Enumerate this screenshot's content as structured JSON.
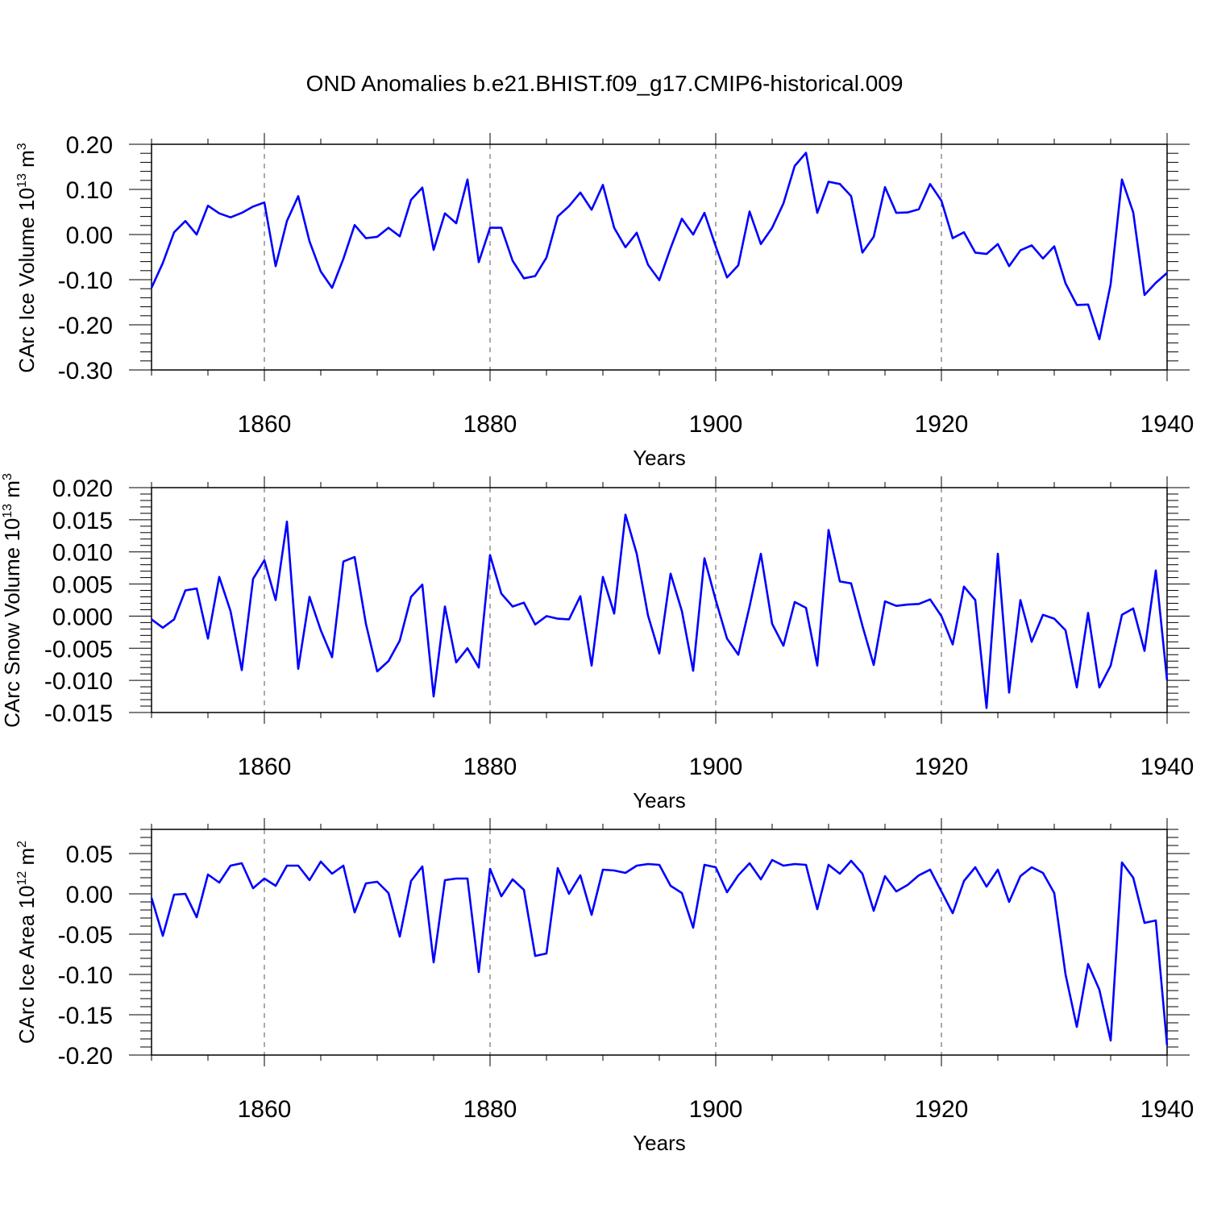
{
  "title": "OND Anomalies b.e21.BHIST.f09_g17.CMIP6-historical.009",
  "colors": {
    "line": "#0000ff",
    "axis": "#000000",
    "grid": "#555555"
  },
  "chart_data": [
    {
      "type": "line",
      "name": "ice-volume",
      "ylabel": {
        "text": "CArc Ice Volume 10",
        "sup": "13",
        "unit": " m",
        "unit_sup": "3"
      },
      "xlabel": "Years",
      "xlim": [
        1850,
        1940
      ],
      "ylim": [
        -0.3,
        0.2
      ],
      "yticks": [
        0.2,
        0.1,
        0.0,
        -0.1,
        -0.2,
        -0.3
      ],
      "ytick_labels": [
        "0.20",
        "0.10",
        "0.00",
        "-0.10",
        "-0.20",
        "-0.30"
      ],
      "xticks": [
        1860,
        1880,
        1900,
        1920,
        1940
      ],
      "xtick_labels": [
        "1860",
        "1880",
        "1900",
        "1920",
        "1940"
      ],
      "x_start": 1850,
      "values": [
        -0.118,
        -0.063,
        0.005,
        0.03,
        0.0,
        0.064,
        0.047,
        0.038,
        0.048,
        0.062,
        0.071,
        -0.07,
        0.03,
        0.085,
        -0.015,
        -0.082,
        -0.118,
        -0.054,
        0.021,
        -0.008,
        -0.005,
        0.015,
        -0.004,
        0.077,
        0.104,
        -0.034,
        0.047,
        0.025,
        0.122,
        -0.061,
        0.015,
        0.015,
        -0.058,
        -0.097,
        -0.092,
        -0.051,
        0.04,
        0.063,
        0.093,
        0.055,
        0.11,
        0.015,
        -0.028,
        0.004,
        -0.067,
        -0.101,
        -0.03,
        0.035,
        0.0,
        0.048,
        -0.026,
        -0.095,
        -0.068,
        0.051,
        -0.021,
        0.015,
        0.069,
        0.152,
        0.181,
        0.048,
        0.117,
        0.112,
        0.085,
        -0.04,
        -0.005,
        0.105,
        0.048,
        0.049,
        0.056,
        0.112,
        0.075,
        -0.008,
        0.005,
        -0.04,
        -0.043,
        -0.021,
        -0.07,
        -0.035,
        -0.024,
        -0.053,
        -0.026,
        -0.108,
        -0.156,
        -0.155,
        -0.232,
        -0.11,
        0.122,
        0.049,
        -0.134,
        -0.107,
        -0.085
      ]
    },
    {
      "type": "line",
      "name": "snow-volume",
      "ylabel": {
        "text": "CArc Snow Volume 10",
        "sup": "13",
        "unit": " m",
        "unit_sup": "3"
      },
      "xlabel": "Years",
      "xlim": [
        1850,
        1940
      ],
      "ylim": [
        -0.015,
        0.02
      ],
      "yticks": [
        0.02,
        0.015,
        0.01,
        0.005,
        0.0,
        -0.005,
        -0.01,
        -0.015
      ],
      "ytick_labels": [
        "0.020",
        "0.015",
        "0.010",
        "0.005",
        "0.000",
        "-0.005",
        "-0.010",
        "-0.015"
      ],
      "xticks": [
        1860,
        1880,
        1900,
        1920,
        1940
      ],
      "xtick_labels": [
        "1860",
        "1880",
        "1900",
        "1920",
        "1940"
      ],
      "x_start": 1850,
      "values": [
        -0.0005,
        -0.0018,
        -0.0005,
        0.004,
        0.0043,
        -0.0035,
        0.0061,
        0.0008,
        -0.0084,
        0.0058,
        0.0087,
        0.0025,
        0.0147,
        -0.0082,
        0.003,
        -0.0022,
        -0.0064,
        0.0085,
        0.0092,
        -0.0012,
        -0.0086,
        -0.007,
        -0.0038,
        0.003,
        0.0049,
        -0.0125,
        0.0015,
        -0.0072,
        -0.005,
        -0.008,
        0.0095,
        0.0035,
        0.0015,
        0.0021,
        -0.0013,
        0.0,
        -0.0004,
        -0.0005,
        0.0031,
        -0.0077,
        0.0061,
        0.0004,
        0.0158,
        0.0097,
        0.0001,
        -0.0058,
        0.0066,
        0.0008,
        -0.0085,
        0.009,
        0.0025,
        -0.0035,
        -0.006,
        0.0015,
        0.0097,
        -0.0012,
        -0.0046,
        0.0022,
        0.0013,
        -0.0077,
        0.0134,
        0.0054,
        0.0051,
        -0.0015,
        -0.0076,
        0.0023,
        0.0016,
        0.0018,
        0.0019,
        0.0026,
        0.0,
        -0.0044,
        0.0046,
        0.0025,
        -0.0143,
        0.0097,
        -0.0119,
        0.0025,
        -0.004,
        0.0002,
        -0.0004,
        -0.0022,
        -0.0111,
        0.0005,
        -0.0111,
        -0.0077,
        0.0002,
        0.0012,
        -0.0054,
        0.0071,
        -0.01
      ]
    },
    {
      "type": "line",
      "name": "ice-area",
      "ylabel": {
        "text": "CArc Ice Area 10",
        "sup": "12",
        "unit": " m",
        "unit_sup": "2"
      },
      "xlabel": "Years",
      "xlim": [
        1850,
        1940
      ],
      "ylim": [
        -0.2,
        0.08
      ],
      "yticks": [
        0.05,
        0.0,
        -0.05,
        -0.1,
        -0.15,
        -0.2
      ],
      "ytick_labels": [
        "0.05",
        "0.00",
        "-0.05",
        "-0.10",
        "-0.15",
        "-0.20"
      ],
      "xticks": [
        1860,
        1880,
        1900,
        1920,
        1940
      ],
      "xtick_labels": [
        "1860",
        "1880",
        "1900",
        "1920",
        "1940"
      ],
      "x_start": 1850,
      "values": [
        -0.005,
        -0.052,
        -0.001,
        0.0,
        -0.029,
        0.024,
        0.014,
        0.035,
        0.038,
        0.007,
        0.019,
        0.01,
        0.035,
        0.035,
        0.017,
        0.04,
        0.025,
        0.035,
        -0.023,
        0.013,
        0.015,
        0.001,
        -0.053,
        0.016,
        0.034,
        -0.085,
        0.017,
        0.019,
        0.019,
        -0.097,
        0.031,
        -0.003,
        0.018,
        0.005,
        -0.077,
        -0.074,
        0.032,
        0.0,
        0.023,
        -0.026,
        0.03,
        0.029,
        0.026,
        0.035,
        0.037,
        0.036,
        0.01,
        0.001,
        -0.042,
        0.036,
        0.033,
        0.002,
        0.023,
        0.038,
        0.018,
        0.042,
        0.035,
        0.037,
        0.036,
        -0.019,
        0.036,
        0.025,
        0.041,
        0.025,
        -0.021,
        0.022,
        0.003,
        0.011,
        0.023,
        0.03,
        0.003,
        -0.024,
        0.016,
        0.033,
        0.009,
        0.03,
        -0.01,
        0.022,
        0.033,
        0.026,
        0.001,
        -0.1,
        -0.165,
        -0.087,
        -0.119,
        -0.182,
        0.039,
        0.02,
        -0.036,
        -0.033,
        -0.188
      ]
    }
  ]
}
